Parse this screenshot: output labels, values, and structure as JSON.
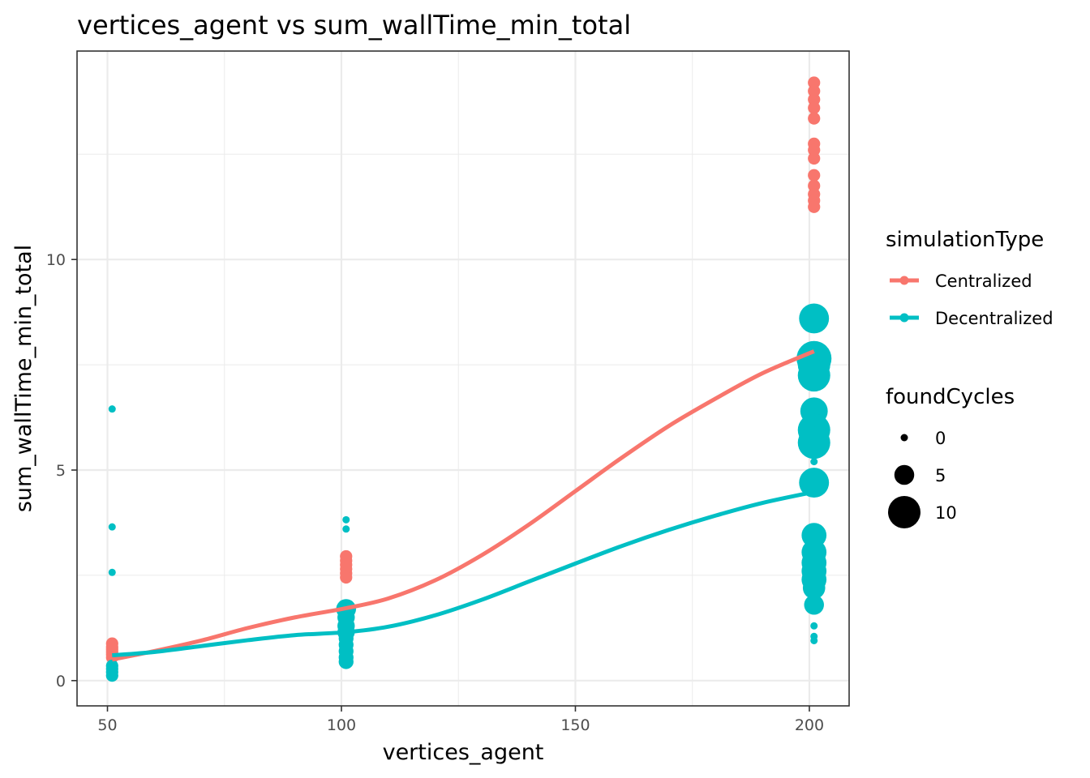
{
  "chart_data": {
    "type": "scatter",
    "title": "vertices_agent  vs  sum_wallTime_min_total",
    "xlabel": "vertices_agent",
    "ylabel": "sum_wallTime_min_total",
    "xlim": [
      43.5,
      208.5
    ],
    "ylim": [
      -0.6,
      14.95
    ],
    "x_ticks": [
      50,
      100,
      150,
      200
    ],
    "y_ticks": [
      0,
      5,
      10
    ],
    "x_tick_labels": [
      "50",
      "100",
      "150",
      "200"
    ],
    "y_tick_labels": [
      "0",
      "5",
      "10"
    ],
    "grid": true,
    "legend_placement": "right",
    "color_legend": {
      "title": "simulationType",
      "entries": [
        {
          "label": "Centralized",
          "color": "#F8766D"
        },
        {
          "label": "Decentralized",
          "color": "#00BFC4"
        }
      ]
    },
    "size_legend": {
      "title": "foundCycles",
      "entries": [
        {
          "label": "0",
          "value": 0
        },
        {
          "label": "5",
          "value": 5
        },
        {
          "label": "10",
          "value": 10
        }
      ]
    },
    "series": [
      {
        "name": "Centralized",
        "color": "#F8766D",
        "points": [
          {
            "x": 51,
            "y": 0.88,
            "size": 2
          },
          {
            "x": 51,
            "y": 0.8,
            "size": 2
          },
          {
            "x": 51,
            "y": 0.74,
            "size": 2
          },
          {
            "x": 51,
            "y": 0.68,
            "size": 2
          },
          {
            "x": 51,
            "y": 0.62,
            "size": 2
          },
          {
            "x": 51,
            "y": 0.55,
            "size": 2
          },
          {
            "x": 101,
            "y": 2.95,
            "size": 2
          },
          {
            "x": 101,
            "y": 2.85,
            "size": 2
          },
          {
            "x": 101,
            "y": 2.75,
            "size": 2
          },
          {
            "x": 101,
            "y": 2.65,
            "size": 2
          },
          {
            "x": 101,
            "y": 2.55,
            "size": 2
          },
          {
            "x": 101,
            "y": 2.45,
            "size": 2
          },
          {
            "x": 101,
            "y": 0.65,
            "size": 2
          },
          {
            "x": 201,
            "y": 14.2,
            "size": 2
          },
          {
            "x": 201,
            "y": 14.0,
            "size": 2
          },
          {
            "x": 201,
            "y": 13.8,
            "size": 2
          },
          {
            "x": 201,
            "y": 13.6,
            "size": 2
          },
          {
            "x": 201,
            "y": 13.35,
            "size": 2
          },
          {
            "x": 201,
            "y": 12.75,
            "size": 2
          },
          {
            "x": 201,
            "y": 12.6,
            "size": 2
          },
          {
            "x": 201,
            "y": 12.4,
            "size": 2
          },
          {
            "x": 201,
            "y": 12.0,
            "size": 2
          },
          {
            "x": 201,
            "y": 11.75,
            "size": 2
          },
          {
            "x": 201,
            "y": 11.55,
            "size": 2
          },
          {
            "x": 201,
            "y": 11.4,
            "size": 2
          },
          {
            "x": 201,
            "y": 11.25,
            "size": 2
          },
          {
            "x": 201,
            "y": 3.35,
            "size": 2
          }
        ],
        "smooth": [
          [
            51,
            0.5
          ],
          [
            60,
            0.7
          ],
          [
            70,
            0.95
          ],
          [
            80,
            1.25
          ],
          [
            90,
            1.5
          ],
          [
            101,
            1.72
          ],
          [
            110,
            1.95
          ],
          [
            120,
            2.38
          ],
          [
            130,
            2.98
          ],
          [
            140,
            3.7
          ],
          [
            150,
            4.5
          ],
          [
            160,
            5.3
          ],
          [
            170,
            6.05
          ],
          [
            180,
            6.7
          ],
          [
            190,
            7.3
          ],
          [
            201,
            7.82
          ]
        ]
      },
      {
        "name": "Decentralized",
        "color": "#00BFC4",
        "points": [
          {
            "x": 51,
            "y": 6.45,
            "size": 0
          },
          {
            "x": 51,
            "y": 3.65,
            "size": 0
          },
          {
            "x": 51,
            "y": 2.57,
            "size": 0
          },
          {
            "x": 51,
            "y": 0.35,
            "size": 2
          },
          {
            "x": 51,
            "y": 0.28,
            "size": 2
          },
          {
            "x": 51,
            "y": 0.2,
            "size": 2
          },
          {
            "x": 51,
            "y": 0.12,
            "size": 2
          },
          {
            "x": 101,
            "y": 3.82,
            "size": 0
          },
          {
            "x": 101,
            "y": 3.6,
            "size": 0
          },
          {
            "x": 101,
            "y": 1.7,
            "size": 5
          },
          {
            "x": 101,
            "y": 1.5,
            "size": 4
          },
          {
            "x": 101,
            "y": 1.3,
            "size": 4
          },
          {
            "x": 101,
            "y": 1.15,
            "size": 4
          },
          {
            "x": 101,
            "y": 1.0,
            "size": 3
          },
          {
            "x": 101,
            "y": 0.85,
            "size": 3
          },
          {
            "x": 101,
            "y": 0.7,
            "size": 3
          },
          {
            "x": 101,
            "y": 0.55,
            "size": 3
          },
          {
            "x": 101,
            "y": 0.45,
            "size": 3
          },
          {
            "x": 201,
            "y": 8.6,
            "size": 9
          },
          {
            "x": 201,
            "y": 7.65,
            "size": 11
          },
          {
            "x": 201,
            "y": 7.5,
            "size": 10
          },
          {
            "x": 201,
            "y": 7.25,
            "size": 10
          },
          {
            "x": 201,
            "y": 6.4,
            "size": 8
          },
          {
            "x": 201,
            "y": 5.95,
            "size": 10
          },
          {
            "x": 201,
            "y": 5.65,
            "size": 10
          },
          {
            "x": 201,
            "y": 5.2,
            "size": 0
          },
          {
            "x": 201,
            "y": 4.7,
            "size": 9
          },
          {
            "x": 201,
            "y": 3.45,
            "size": 7
          },
          {
            "x": 201,
            "y": 3.05,
            "size": 7
          },
          {
            "x": 201,
            "y": 2.8,
            "size": 7
          },
          {
            "x": 201,
            "y": 2.6,
            "size": 7
          },
          {
            "x": 201,
            "y": 2.4,
            "size": 7
          },
          {
            "x": 201,
            "y": 2.2,
            "size": 6
          },
          {
            "x": 201,
            "y": 1.8,
            "size": 5
          },
          {
            "x": 201,
            "y": 1.3,
            "size": 0
          },
          {
            "x": 201,
            "y": 1.05,
            "size": 0
          },
          {
            "x": 201,
            "y": 0.95,
            "size": 0
          }
        ],
        "smooth": [
          [
            51,
            0.6
          ],
          [
            60,
            0.68
          ],
          [
            70,
            0.82
          ],
          [
            80,
            0.96
          ],
          [
            90,
            1.08
          ],
          [
            101,
            1.15
          ],
          [
            110,
            1.28
          ],
          [
            120,
            1.55
          ],
          [
            130,
            1.92
          ],
          [
            140,
            2.35
          ],
          [
            150,
            2.78
          ],
          [
            160,
            3.2
          ],
          [
            170,
            3.58
          ],
          [
            180,
            3.92
          ],
          [
            190,
            4.22
          ],
          [
            201,
            4.48
          ]
        ]
      }
    ]
  }
}
